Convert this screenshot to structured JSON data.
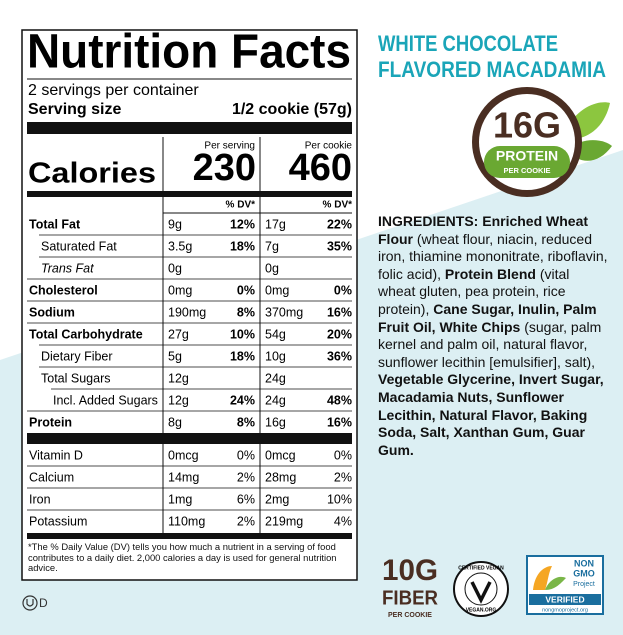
{
  "label": {
    "title": "Nutrition Facts",
    "servings": "2 servings per container",
    "serving_size_label": "Serving size",
    "serving_size": "1/2 cookie (57g)",
    "columns": [
      "Per serving",
      "Per cookie"
    ],
    "calories_label": "Calories",
    "calories": [
      "230",
      "460"
    ],
    "dv_header": [
      "% DV*",
      "% DV*"
    ],
    "rows": [
      [
        "Total Fat",
        "9g",
        "12%",
        "17g",
        "22%"
      ],
      [
        "Saturated Fat",
        "3.5g",
        "18%",
        "7g",
        "35%"
      ],
      [
        "Trans Fat",
        "0g",
        "",
        "0g",
        ""
      ],
      [
        "Cholesterol",
        "0mg",
        "0%",
        "0mg",
        "0%"
      ],
      [
        "Sodium",
        "190mg",
        "8%",
        "370mg",
        "16%"
      ],
      [
        "Total Carbohydrate",
        "27g",
        "10%",
        "54g",
        "20%"
      ],
      [
        "Dietary Fiber",
        "5g",
        "18%",
        "10g",
        "36%"
      ],
      [
        "Total Sugars",
        "12g",
        "",
        "24g",
        ""
      ],
      [
        "Incl. Added Sugars",
        "12g",
        "24%",
        "24g",
        "48%"
      ],
      [
        "Protein",
        "8g",
        "8%",
        "16g",
        "16%"
      ],
      [
        "Vitamin D",
        "0mcg",
        "0%",
        "0mcg",
        "0%"
      ],
      [
        "Calcium",
        "14mg",
        "2%",
        "28mg",
        "2%"
      ],
      [
        "Iron",
        "1mg",
        "6%",
        "2mg",
        "10%"
      ],
      [
        "Potassium",
        "110mg",
        "2%",
        "219mg",
        "4%"
      ]
    ],
    "footnote": "*The % Daily Value (DV) tells you how much a nutrient in a serving of food contributes to a daily diet. 2,000 calories a day is used for general nutrition advice."
  },
  "product": {
    "name": [
      "WHITE CHOCOLATE",
      "FLAVORED MACADAMIA"
    ]
  },
  "protein_badge": {
    "amount": "16G",
    "label": "PROTEIN",
    "sub": "PER COOKIE"
  },
  "ingredients": [
    "INGREDIENTS: Enriched Wheat Flour",
    " (wheat flour, niacin, reduced iron, thiamine mononitrate, riboflavin, folic acid), ",
    "Protein Blend",
    " (vital wheat gluten, pea protein, rice protein), ",
    "Cane Sugar, Inulin, Palm Fruit Oil, White Chips",
    " (sugar, palm kernel and palm oil, natural flavor, sunflower lecithin [emulsifier], salt), ",
    "Vegetable Glycerine, Invert Sugar, Macadamia Nuts, Sunflower Lecithin, Natural Flavor, Baking Soda, Salt, Xanthan Gum, Guar Gum."
  ],
  "fiber_badge": {
    "amount": "10G",
    "label": "FIBER",
    "sub": "PER COOKIE"
  },
  "vegan_badge": {
    "top": "CERTIFIED VEGAN",
    "bottom": "VEGAN.ORG"
  },
  "non_gmo_badge": {
    "title": [
      "NON",
      "GMO",
      "Project"
    ],
    "verified": "VERIFIED",
    "url": "nongmoproject.org"
  },
  "kosher": "D"
}
